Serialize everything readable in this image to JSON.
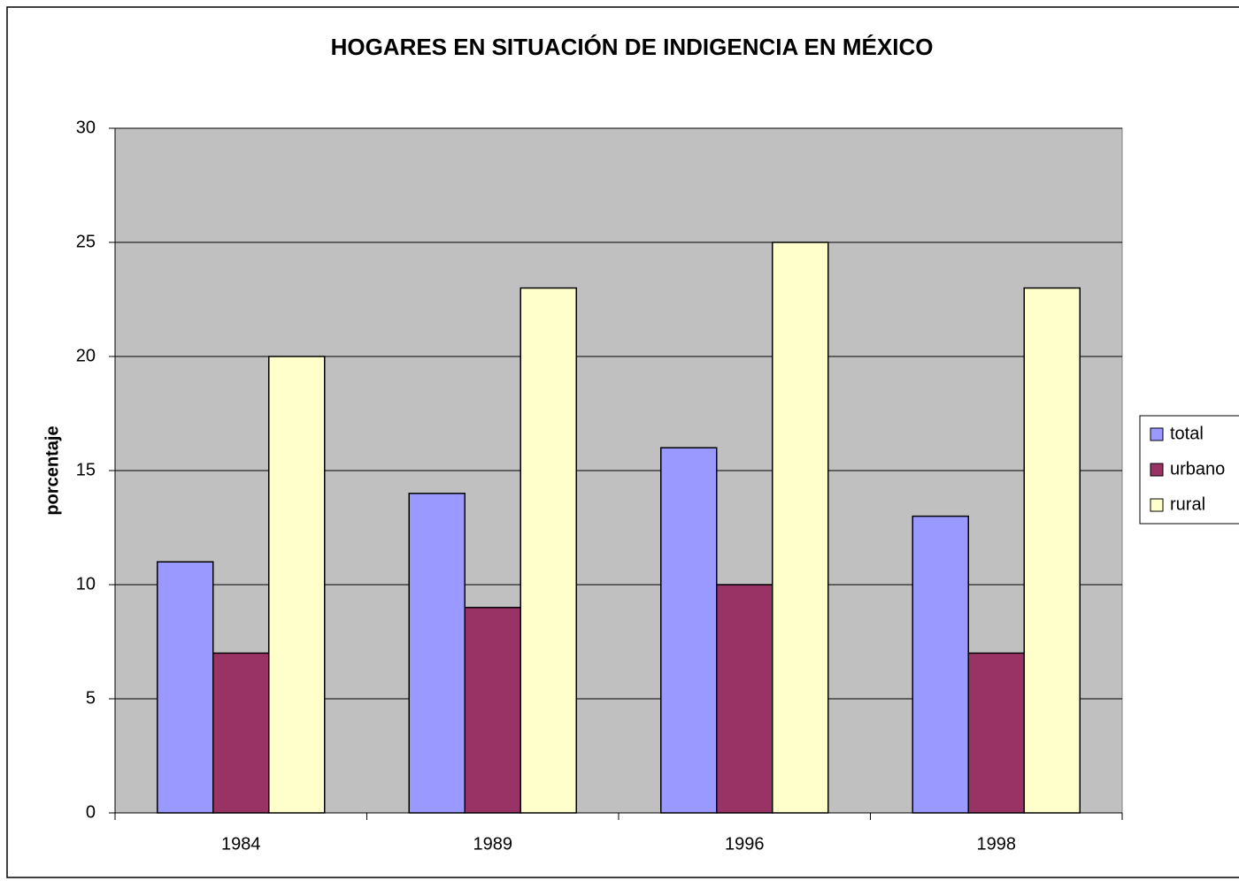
{
  "chart_data": {
    "type": "bar",
    "title": "HOGARES EN SITUACIÓN DE INDIGENCIA EN MÉXICO",
    "y_label": "porcentaje",
    "categories": [
      "1984",
      "1989",
      "1996",
      "1998"
    ],
    "series": [
      {
        "name": "total",
        "color": "#9999ff",
        "values": [
          11,
          14,
          16,
          13
        ]
      },
      {
        "name": "urbano",
        "color": "#993366",
        "values": [
          7,
          9,
          10,
          7
        ]
      },
      {
        "name": "rural",
        "color": "#ffffcc",
        "values": [
          20,
          23,
          25,
          23
        ]
      }
    ],
    "ylim": [
      0,
      30
    ],
    "yticks": [
      0,
      5,
      10,
      15,
      20,
      25,
      30
    ],
    "grid": true,
    "legend": "right",
    "plot_background": "#c0c0c0"
  }
}
